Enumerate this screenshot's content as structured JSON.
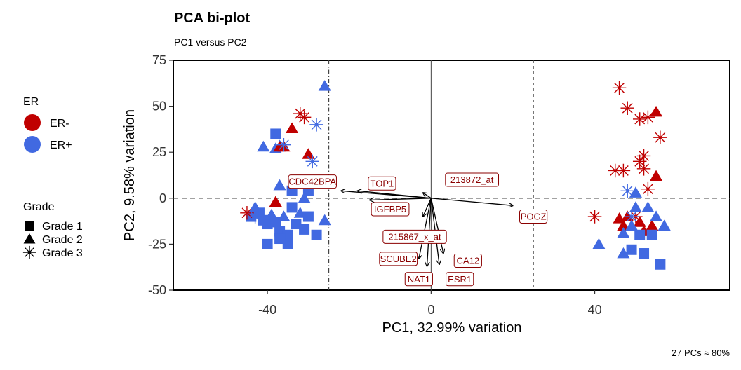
{
  "chart_data": {
    "type": "scatter",
    "title": "PCA bi-plot",
    "subtitle": "PC1 versus PC2",
    "xlabel": "PC1, 32.99% variation",
    "ylabel": "PC2, 9.58% variation",
    "caption": "27 PCs ≈ 80%",
    "xlim": [
      -63,
      73
    ],
    "ylim": [
      -50,
      75
    ],
    "xticks": [
      -40,
      0,
      40
    ],
    "yticks": [
      -50,
      -25,
      0,
      25,
      50,
      75
    ],
    "grid": false,
    "reference_lines": {
      "hline_dashed": [
        0
      ],
      "vline_dashed": [
        25
      ],
      "vline_dotdash": [
        -25
      ],
      "hline_solid": [
        0
      ],
      "vline_solid": [
        0
      ]
    },
    "colors": {
      "ER-": "#c00000",
      "ER+": "#4169e1",
      "loadings": "#8b0000",
      "arrow": "#000000"
    },
    "legend": {
      "placement": "left",
      "groups": [
        {
          "title": "ER",
          "entries": [
            {
              "label": "ER-",
              "symbol": "circle",
              "color": "#c00000"
            },
            {
              "label": "ER+",
              "symbol": "circle",
              "color": "#4169e1"
            }
          ]
        },
        {
          "title": "Grade",
          "entries": [
            {
              "label": "Grade 1",
              "symbol": "square",
              "color": "#000000"
            },
            {
              "label": "Grade 2",
              "symbol": "triangle",
              "color": "#000000"
            },
            {
              "label": "Grade 3",
              "symbol": "star",
              "color": "#000000"
            }
          ]
        }
      ]
    },
    "points": [
      {
        "x": -38,
        "y": 35,
        "er": "ER+",
        "grade": 1
      },
      {
        "x": -38,
        "y": 27,
        "er": "ER+",
        "grade": 2
      },
      {
        "x": -41,
        "y": 28,
        "er": "ER+",
        "grade": 2
      },
      {
        "x": -37,
        "y": 28,
        "er": "ER-",
        "grade": 2
      },
      {
        "x": -36,
        "y": 28,
        "er": "ER-",
        "grade": 2
      },
      {
        "x": -34,
        "y": 38,
        "er": "ER-",
        "grade": 2
      },
      {
        "x": -30,
        "y": 24,
        "er": "ER-",
        "grade": 2
      },
      {
        "x": -32,
        "y": 46,
        "er": "ER-",
        "grade": 3
      },
      {
        "x": -31,
        "y": 44,
        "er": "ER-",
        "grade": 3
      },
      {
        "x": -28,
        "y": 40,
        "er": "ER+",
        "grade": 3
      },
      {
        "x": -36,
        "y": 29,
        "er": "ER+",
        "grade": 3
      },
      {
        "x": -29,
        "y": 20,
        "er": "ER+",
        "grade": 3
      },
      {
        "x": -26,
        "y": 61,
        "er": "ER+",
        "grade": 2
      },
      {
        "x": -37,
        "y": 7,
        "er": "ER+",
        "grade": 2
      },
      {
        "x": -34,
        "y": 4,
        "er": "ER+",
        "grade": 1
      },
      {
        "x": -38,
        "y": -2,
        "er": "ER-",
        "grade": 2
      },
      {
        "x": -44,
        "y": -10,
        "er": "ER+",
        "grade": 1
      },
      {
        "x": -42,
        "y": -8,
        "er": "ER+",
        "grade": 1
      },
      {
        "x": -41,
        "y": -12,
        "er": "ER+",
        "grade": 1
      },
      {
        "x": -40,
        "y": -14,
        "er": "ER+",
        "grade": 1
      },
      {
        "x": -39,
        "y": -9,
        "er": "ER+",
        "grade": 2
      },
      {
        "x": -38,
        "y": -13,
        "er": "ER+",
        "grade": 1
      },
      {
        "x": -37,
        "y": -18,
        "er": "ER+",
        "grade": 1
      },
      {
        "x": -36,
        "y": -10,
        "er": "ER+",
        "grade": 2
      },
      {
        "x": -35,
        "y": -20,
        "er": "ER+",
        "grade": 1
      },
      {
        "x": -34,
        "y": -5,
        "er": "ER+",
        "grade": 1
      },
      {
        "x": -33,
        "y": -14,
        "er": "ER+",
        "grade": 1
      },
      {
        "x": -32,
        "y": -8,
        "er": "ER+",
        "grade": 2
      },
      {
        "x": -31,
        "y": -17,
        "er": "ER+",
        "grade": 1
      },
      {
        "x": -30,
        "y": -10,
        "er": "ER+",
        "grade": 1
      },
      {
        "x": -35,
        "y": -25,
        "er": "ER+",
        "grade": 1
      },
      {
        "x": -40,
        "y": -25,
        "er": "ER+",
        "grade": 1
      },
      {
        "x": -37,
        "y": -22,
        "er": "ER+",
        "grade": 1
      },
      {
        "x": -28,
        "y": -20,
        "er": "ER+",
        "grade": 1
      },
      {
        "x": -26,
        "y": -12,
        "er": "ER+",
        "grade": 2
      },
      {
        "x": -45,
        "y": -8,
        "er": "ER-",
        "grade": 3
      },
      {
        "x": -43,
        "y": -10,
        "er": "ER+",
        "grade": 3
      },
      {
        "x": -31,
        "y": 0,
        "er": "ER+",
        "grade": 2
      },
      {
        "x": -30,
        "y": 4,
        "er": "ER+",
        "grade": 1
      },
      {
        "x": -43,
        "y": -5,
        "er": "ER+",
        "grade": 2
      },
      {
        "x": 46,
        "y": 60,
        "er": "ER-",
        "grade": 3
      },
      {
        "x": 48,
        "y": 49,
        "er": "ER-",
        "grade": 3
      },
      {
        "x": 51,
        "y": 43,
        "er": "ER-",
        "grade": 3
      },
      {
        "x": 53,
        "y": 44,
        "er": "ER-",
        "grade": 3
      },
      {
        "x": 55,
        "y": 47,
        "er": "ER-",
        "grade": 2
      },
      {
        "x": 56,
        "y": 33,
        "er": "ER-",
        "grade": 3
      },
      {
        "x": 52,
        "y": 23,
        "er": "ER-",
        "grade": 3
      },
      {
        "x": 51,
        "y": 20,
        "er": "ER-",
        "grade": 3
      },
      {
        "x": 55,
        "y": 12,
        "er": "ER-",
        "grade": 2
      },
      {
        "x": 45,
        "y": 15,
        "er": "ER-",
        "grade": 3
      },
      {
        "x": 47,
        "y": 15,
        "er": "ER-",
        "grade": 3
      },
      {
        "x": 52,
        "y": 16,
        "er": "ER-",
        "grade": 3
      },
      {
        "x": 53,
        "y": 5,
        "er": "ER-",
        "grade": 3
      },
      {
        "x": 48,
        "y": 4,
        "er": "ER+",
        "grade": 3
      },
      {
        "x": 50,
        "y": 3,
        "er": "ER+",
        "grade": 2
      },
      {
        "x": 40,
        "y": -10,
        "er": "ER-",
        "grade": 3
      },
      {
        "x": 46,
        "y": -11,
        "er": "ER-",
        "grade": 2
      },
      {
        "x": 47,
        "y": -15,
        "er": "ER-",
        "grade": 2
      },
      {
        "x": 48,
        "y": -10,
        "er": "ER-",
        "grade": 2
      },
      {
        "x": 50,
        "y": -10,
        "er": "ER-",
        "grade": 3
      },
      {
        "x": 51,
        "y": -13,
        "er": "ER-",
        "grade": 2
      },
      {
        "x": 52,
        "y": -18,
        "er": "ER-",
        "grade": 2
      },
      {
        "x": 54,
        "y": -15,
        "er": "ER-",
        "grade": 2
      },
      {
        "x": 53,
        "y": -5,
        "er": "ER+",
        "grade": 2
      },
      {
        "x": 50,
        "y": -5,
        "er": "ER+",
        "grade": 2
      },
      {
        "x": 55,
        "y": -10,
        "er": "ER+",
        "grade": 2
      },
      {
        "x": 57,
        "y": -15,
        "er": "ER+",
        "grade": 2
      },
      {
        "x": 47,
        "y": -19,
        "er": "ER+",
        "grade": 2
      },
      {
        "x": 51,
        "y": -20,
        "er": "ER+",
        "grade": 1
      },
      {
        "x": 49,
        "y": -15,
        "er": "ER+",
        "grade": 2
      },
      {
        "x": 54,
        "y": -20,
        "er": "ER+",
        "grade": 1
      },
      {
        "x": 41,
        "y": -25,
        "er": "ER+",
        "grade": 2
      },
      {
        "x": 47,
        "y": -30,
        "er": "ER+",
        "grade": 2
      },
      {
        "x": 49,
        "y": -28,
        "er": "ER+",
        "grade": 1
      },
      {
        "x": 52,
        "y": -30,
        "er": "ER+",
        "grade": 1
      },
      {
        "x": 56,
        "y": -36,
        "er": "ER+",
        "grade": 1
      },
      {
        "x": 49,
        "y": -10,
        "er": "ER+",
        "grade": 3
      }
    ],
    "loadings": [
      {
        "name": "CDC42BPA",
        "x": -22,
        "y": 4,
        "lx": -29,
        "ly": 9
      },
      {
        "name": "TOP1",
        "x": -18,
        "y": 4,
        "lx": -12,
        "ly": 8
      },
      {
        "name": "213872_at",
        "x": -2,
        "y": 3,
        "lx": 10,
        "ly": 10
      },
      {
        "name": "IGFBP5",
        "x": -15,
        "y": -1,
        "lx": -10,
        "ly": -6
      },
      {
        "name": "POGZ",
        "x": 20,
        "y": -4,
        "lx": 25,
        "ly": -10
      },
      {
        "name": "215867_x_at",
        "x": -2,
        "y": -10,
        "lx": -4,
        "ly": -21
      },
      {
        "name": "SCUBE2",
        "x": -3,
        "y": -33,
        "lx": -8,
        "ly": -33
      },
      {
        "name": "CA12",
        "x": 3,
        "y": -30,
        "lx": 9,
        "ly": -34
      },
      {
        "name": "NAT1",
        "x": -1,
        "y": -37,
        "lx": -3,
        "ly": -44
      },
      {
        "name": "ESR1",
        "x": 2,
        "y": -36,
        "lx": 7,
        "ly": -44
      }
    ]
  }
}
